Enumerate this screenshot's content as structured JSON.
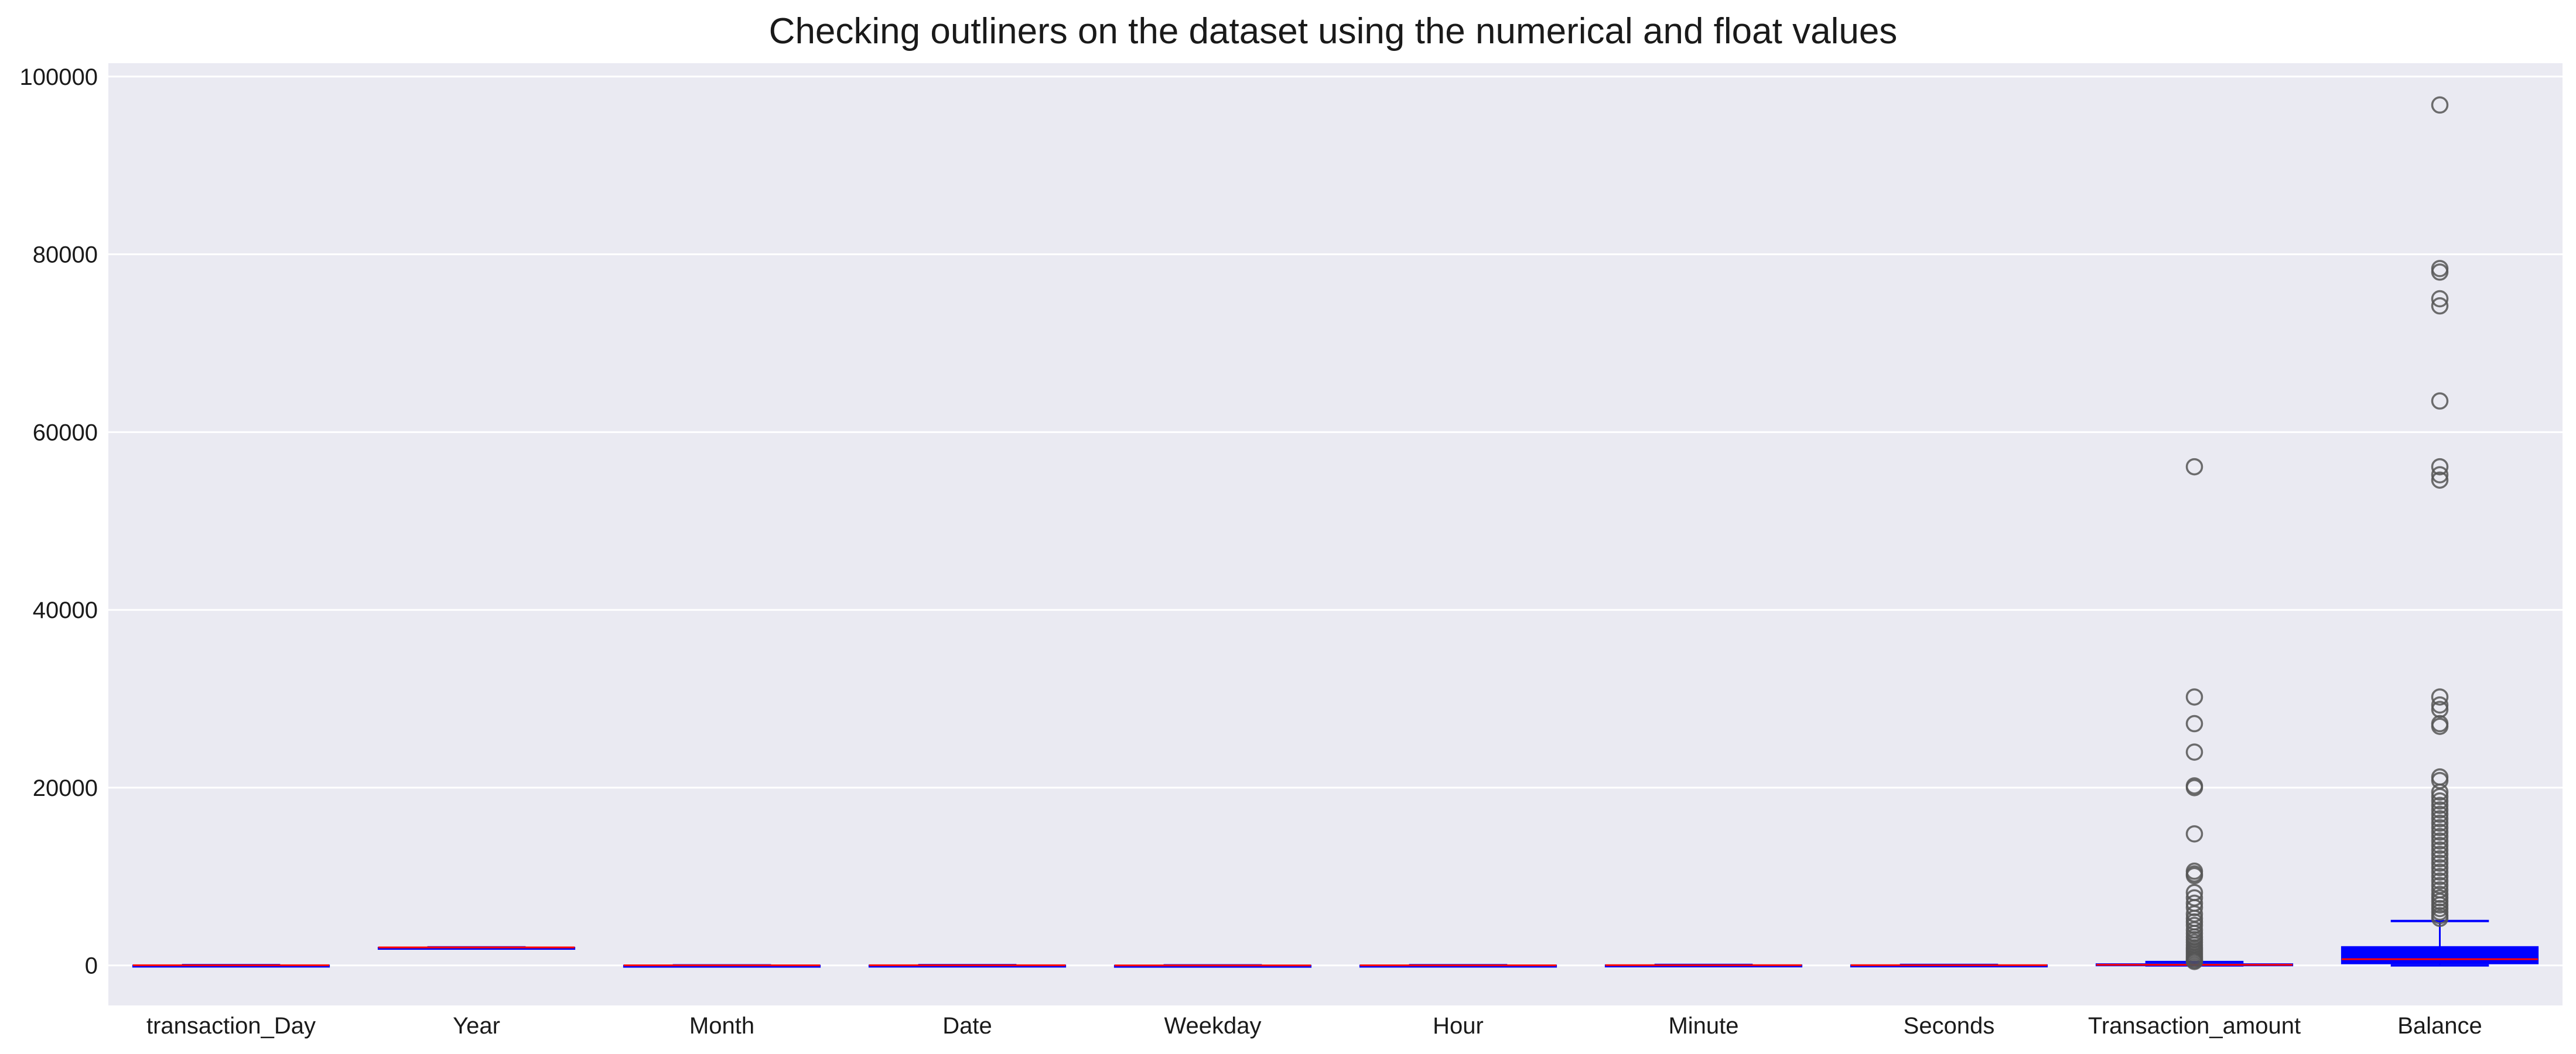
{
  "chart_data": {
    "type": "box",
    "title": "Checking outliners on the dataset using the numerical and float values",
    "xlabel": "",
    "ylabel": "",
    "ylim": [
      -4500,
      101500
    ],
    "yticks": [
      0,
      20000,
      40000,
      60000,
      80000,
      100000
    ],
    "ytick_labels": [
      "0",
      "20000",
      "40000",
      "60000",
      "80000",
      "100000"
    ],
    "grid": true,
    "legend": "none",
    "colors": {
      "background": "#eaeaf2",
      "grid": "#ffffff",
      "box_fill": "#0000ff",
      "median": "#ff0000",
      "whisker": "#0000ff",
      "outlier_edge": "#555555"
    },
    "categories": [
      "transaction_Day",
      "Year",
      "Month",
      "Date",
      "Weekday",
      "Hour",
      "Minute",
      "Seconds",
      "Transaction_amount",
      "Balance"
    ],
    "boxes": [
      {
        "name": "transaction_Day",
        "whislo": 1,
        "q1": 8,
        "med": 16,
        "q3": 23,
        "whishi": 31,
        "fliers": []
      },
      {
        "name": "Year",
        "whislo": 2023,
        "q1": 2023,
        "med": 2023,
        "q3": 2023,
        "whishi": 2023,
        "fliers": []
      },
      {
        "name": "Month",
        "whislo": 1,
        "q1": 4,
        "med": 7,
        "q3": 10,
        "whishi": 12,
        "fliers": []
      },
      {
        "name": "Date",
        "whislo": 1,
        "q1": 8,
        "med": 16,
        "q3": 23,
        "whishi": 31,
        "fliers": []
      },
      {
        "name": "Weekday",
        "whislo": 0,
        "q1": 1,
        "med": 3,
        "q3": 5,
        "whishi": 6,
        "fliers": []
      },
      {
        "name": "Hour",
        "whislo": 0,
        "q1": 6,
        "med": 12,
        "q3": 18,
        "whishi": 23,
        "fliers": []
      },
      {
        "name": "Minute",
        "whislo": 0,
        "q1": 15,
        "med": 30,
        "q3": 45,
        "whishi": 59,
        "fliers": []
      },
      {
        "name": "Seconds",
        "whislo": 0,
        "q1": 15,
        "med": 30,
        "q3": 45,
        "whishi": 59,
        "fliers": []
      },
      {
        "name": "Transaction_amount",
        "whislo": 1,
        "q1": 25,
        "med": 70,
        "q3": 170,
        "whishi": 380,
        "fliers": [
          56100,
          30200,
          27200,
          24000,
          20200,
          20000,
          14800,
          10600,
          10300,
          10100,
          8200,
          7600,
          7000,
          6500,
          5800,
          5300,
          4900,
          4500,
          4000,
          3600,
          3200,
          2900,
          2600,
          2300,
          2000,
          1800,
          1600,
          1400,
          1200,
          1000,
          850,
          700,
          550,
          450
        ]
      },
      {
        "name": "Balance",
        "whislo": 0,
        "q1": 200,
        "med": 700,
        "q3": 2100,
        "whishi": 5000,
        "fliers": [
          96800,
          78400,
          78000,
          75000,
          74200,
          63500,
          56100,
          55200,
          54600,
          30200,
          29300,
          28800,
          27200,
          26900,
          21200,
          20800,
          19500,
          19000,
          18500,
          18000,
          17500,
          17000,
          16500,
          16000,
          15500,
          15000,
          14500,
          14000,
          13500,
          13000,
          12500,
          12000,
          11500,
          11000,
          10500,
          10000,
          9500,
          9000,
          8500,
          8000,
          7600,
          7200,
          6800,
          6400,
          6000,
          5600,
          5300
        ]
      }
    ]
  }
}
